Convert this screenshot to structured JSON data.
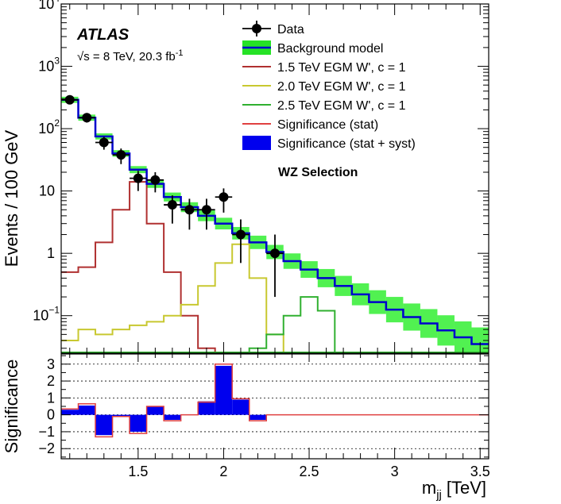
{
  "chart_data": [
    {
      "type": "line",
      "panel": "main",
      "ylabel": "Events / 100 GeV",
      "yscale": "log",
      "xlim": [
        1.05,
        3.55
      ],
      "ylim": [
        0.025,
        10000
      ],
      "y_ticks": [
        {
          "value": 10000,
          "base": "10",
          "exp": "4"
        },
        {
          "value": 1000,
          "base": "10",
          "exp": "3"
        },
        {
          "value": 100,
          "base": "10",
          "exp": "2"
        },
        {
          "value": 10,
          "base": "10",
          "exp": ""
        },
        {
          "value": 1,
          "base": "1",
          "exp": ""
        },
        {
          "value": 0.1,
          "base": "10",
          "exp": "−1"
        }
      ],
      "annotations": {
        "experiment": "ATLAS",
        "energy": "√s = 8 TeV, 20.3 fb",
        "energy_sup": "-1",
        "selection": "WZ Selection"
      },
      "legend": {
        "placement": "top-right",
        "entries": [
          {
            "label": "Data",
            "style": "marker",
            "color": "#000000"
          },
          {
            "label": "Background model",
            "style": "band",
            "color": "#00dd00",
            "line_color": "#0000cc"
          },
          {
            "label": "1.5 TeV EGM W', c = 1",
            "style": "line",
            "color": "#b03030"
          },
          {
            "label": "2.0 TeV EGM W', c = 1",
            "style": "line",
            "color": "#c8c830"
          },
          {
            "label": "2.5 TeV EGM W', c = 1",
            "style": "line",
            "color": "#30b030"
          },
          {
            "label": "Significance (stat)",
            "style": "line",
            "color": "#e04040"
          },
          {
            "label": "Significance (stat + syst)",
            "style": "fill",
            "color": "#0000ee"
          }
        ]
      },
      "background": {
        "name": "Background model",
        "bin_edges": [
          1.05,
          1.15,
          1.25,
          1.35,
          1.45,
          1.55,
          1.65,
          1.75,
          1.85,
          1.95,
          2.05,
          2.15,
          2.25,
          2.35,
          2.45,
          2.55,
          2.65,
          2.75,
          2.85,
          2.95,
          3.05,
          3.15,
          3.25,
          3.35,
          3.45,
          3.55
        ],
        "values": [
          290,
          150,
          75,
          40,
          22,
          13,
          8,
          5.5,
          4,
          3,
          2.1,
          1.5,
          1.05,
          0.75,
          0.55,
          0.4,
          0.3,
          0.22,
          0.165,
          0.125,
          0.095,
          0.075,
          0.058,
          0.045,
          0.035
        ],
        "band_rel_up": [
          0.12,
          0.12,
          0.12,
          0.13,
          0.14,
          0.16,
          0.18,
          0.2,
          0.22,
          0.24,
          0.26,
          0.28,
          0.3,
          0.33,
          0.36,
          0.4,
          0.45,
          0.5,
          0.55,
          0.6,
          0.65,
          0.7,
          0.75,
          0.8,
          0.85
        ]
      },
      "data": {
        "name": "Data",
        "x": [
          1.1,
          1.2,
          1.3,
          1.4,
          1.5,
          1.6,
          1.7,
          1.8,
          1.9,
          2.0,
          2.1,
          2.3
        ],
        "y": [
          290,
          150,
          60,
          38,
          16,
          15,
          6,
          5,
          5,
          8,
          2,
          1
        ],
        "y_lo": [
          255,
          125,
          46,
          27,
          10,
          9.5,
          3,
          2.4,
          2.4,
          4.5,
          0.7,
          0.2
        ],
        "y_hi": [
          325,
          175,
          74,
          48,
          21,
          20,
          8.5,
          7.5,
          7.5,
          11,
          3.5,
          2
        ]
      },
      "signals": [
        {
          "name": "1.5 TeV EGM W', c = 1",
          "color": "#b03030",
          "bin_edges": [
            1.05,
            1.15,
            1.25,
            1.35,
            1.45,
            1.55,
            1.65,
            1.75,
            1.85,
            1.95,
            2.05
          ],
          "values": [
            0.5,
            0.6,
            1.5,
            5,
            14,
            3,
            0.5,
            0.1,
            0.03,
            0.022
          ]
        },
        {
          "name": "2.0 TeV EGM W', c = 1",
          "color": "#c8c830",
          "bin_edges": [
            1.05,
            1.15,
            1.25,
            1.35,
            1.45,
            1.55,
            1.65,
            1.75,
            1.85,
            1.95,
            2.05,
            2.15,
            2.25,
            2.35,
            2.45
          ],
          "values": [
            0.04,
            0.06,
            0.05,
            0.06,
            0.07,
            0.08,
            0.1,
            0.15,
            0.3,
            0.7,
            1.4,
            0.4,
            0.05,
            0.022
          ]
        },
        {
          "name": "2.5 TeV EGM W', c = 1",
          "color": "#30b030",
          "bin_edges": [
            2.05,
            2.15,
            2.25,
            2.35,
            2.45,
            2.55,
            2.65,
            2.75
          ],
          "values": [
            0.022,
            0.03,
            0.05,
            0.1,
            0.2,
            0.12,
            0.022
          ]
        }
      ]
    },
    {
      "type": "bar",
      "panel": "ratio",
      "xlabel": "m",
      "xlabel_sub": "jj",
      "xlabel_unit": "[TeV]",
      "ylabel": "Significance",
      "xlim": [
        1.05,
        3.55
      ],
      "ylim": [
        -2.6,
        3.6
      ],
      "y_ticks": [
        -2,
        -1,
        0,
        1,
        2,
        3
      ],
      "x_ticks": [
        1.5,
        2,
        2.5,
        3,
        3.5
      ],
      "x_tick_labels": [
        "1.5",
        "2",
        "2.5",
        "3",
        "3.5"
      ],
      "bin_edges": [
        1.05,
        1.15,
        1.25,
        1.35,
        1.45,
        1.55,
        1.65,
        1.75,
        1.85,
        1.95,
        2.05,
        2.15,
        2.25,
        2.35,
        2.45,
        2.55,
        2.65,
        2.75,
        2.85,
        2.95,
        3.05,
        3.15,
        3.25,
        3.35,
        3.45,
        3.55
      ],
      "significance_stat_syst": [
        0.3,
        0.55,
        -1.2,
        -0.1,
        -1.0,
        0.5,
        -0.3,
        0.0,
        0.8,
        2.9,
        0.9,
        -0.3,
        0,
        0,
        0,
        0,
        0,
        0,
        0,
        0,
        0,
        0,
        0,
        0,
        0
      ],
      "significance_stat": [
        0.35,
        0.65,
        -1.3,
        -0.1,
        -1.1,
        0.5,
        -0.35,
        0.0,
        0.75,
        3.0,
        0.95,
        -0.35,
        0,
        0,
        0,
        0,
        0,
        0,
        0,
        0,
        0,
        0,
        0,
        0,
        0
      ]
    }
  ]
}
